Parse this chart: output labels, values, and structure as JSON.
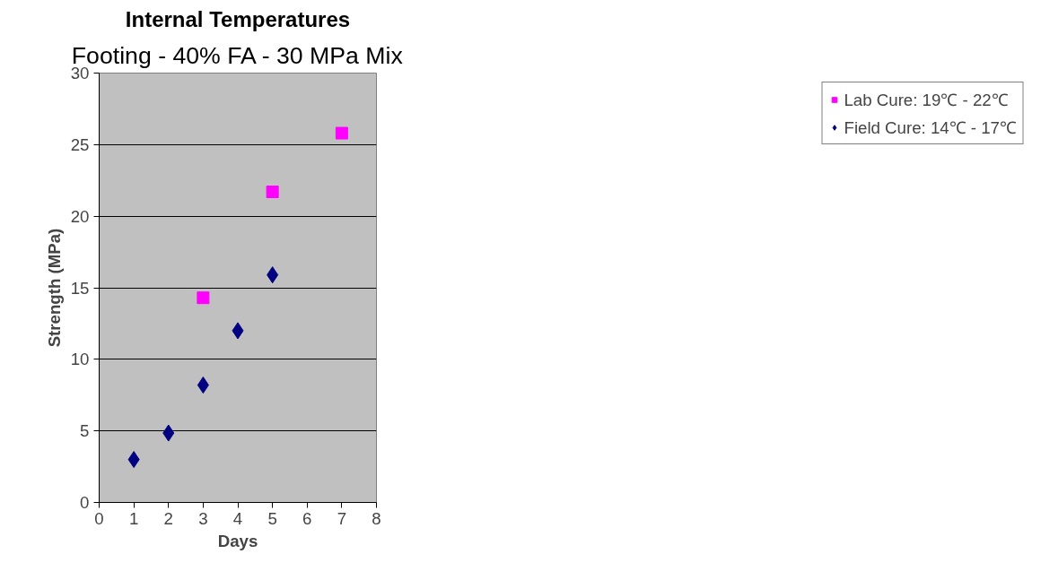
{
  "chart_data": {
    "type": "scatter",
    "title": "Internal Temperatures",
    "subtitle": "Footing - 40% FA - 30 MPa Mix",
    "xlabel": "Days",
    "ylabel": "Strength (MPa)",
    "xlim": [
      0,
      8
    ],
    "xticks": [
      0,
      1,
      2,
      3,
      4,
      5,
      6,
      7,
      8
    ],
    "ylim": [
      0,
      30
    ],
    "yticks": [
      0,
      5,
      10,
      15,
      20,
      25,
      30
    ],
    "grid": "y",
    "legend": "right",
    "series": [
      {
        "name": "Lab Cure: 19℃ - 22℃",
        "color": "#ff00ff",
        "marker": "square",
        "x": [
          3,
          5,
          7
        ],
        "values": [
          14.3,
          21.7,
          25.8
        ]
      },
      {
        "name": "Field Cure: 14℃ - 17℃",
        "color": "#000080",
        "marker": "diamond",
        "x": [
          1,
          2,
          3,
          4,
          5
        ],
        "values": [
          3.0,
          4.85,
          8.2,
          12.0,
          15.9
        ]
      }
    ]
  }
}
